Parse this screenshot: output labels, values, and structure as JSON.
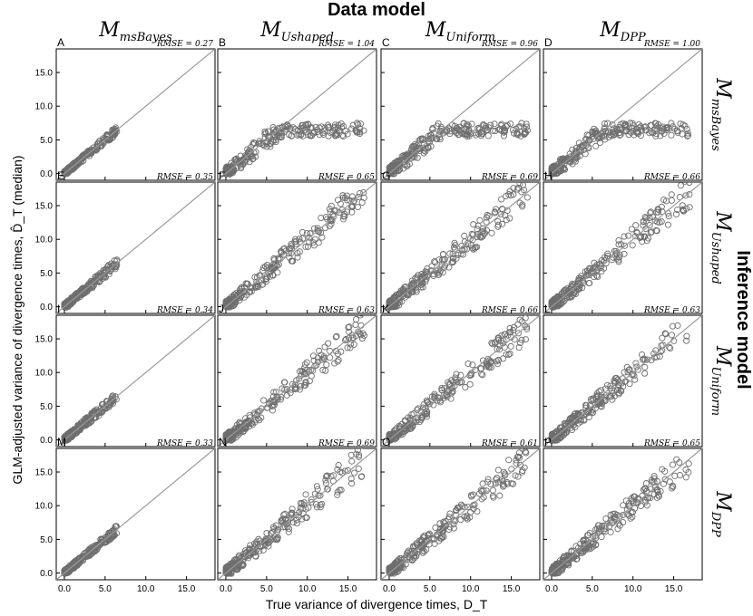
{
  "figure": {
    "top_title": "Data model",
    "right_title": "Inference model",
    "xlabel": "True variance of divergence times, D_T",
    "ylabel": "GLM-adjusted variance of divergence times, D̂_T (median)",
    "column_models": [
      {
        "main": "M",
        "sub": "msBayes"
      },
      {
        "main": "M",
        "sub": "Ushaped"
      },
      {
        "main": "M",
        "sub": "Uniform"
      },
      {
        "main": "M",
        "sub": "DPP"
      }
    ],
    "row_models": [
      {
        "main": "M",
        "sub": "msBayes"
      },
      {
        "main": "M",
        "sub": "Ushaped"
      },
      {
        "main": "M",
        "sub": "Uniform"
      },
      {
        "main": "M",
        "sub": "DPP"
      }
    ]
  },
  "chart_data": {
    "type": "scatter",
    "layout": "4x4 grid of panels",
    "xlim": [
      -1,
      18.5
    ],
    "ylim": [
      -1,
      18.5
    ],
    "x_ticks": [
      0.0,
      5.0,
      10.0,
      15.0
    ],
    "x_tick_labels": [
      "0.0",
      "5.0",
      "10.0",
      "15.0"
    ],
    "y_ticks": [
      0.0,
      5.0,
      10.0,
      15.0
    ],
    "y_tick_labels": [
      "0.0",
      "5.0",
      "10.0",
      "15.0"
    ],
    "reference_line": "y = x",
    "grid": false,
    "marker": "open circle",
    "point_color": "#6e6e6e",
    "line_color": "#9a9a9a",
    "panels": [
      {
        "letter": "A",
        "rmse": "RMSE = 0.27",
        "xmax": 6.5,
        "spread": 0.35,
        "cap": 7
      },
      {
        "letter": "B",
        "rmse": "RMSE = 1.04",
        "xmax": 17,
        "spread": 0.9,
        "cap": 7.5
      },
      {
        "letter": "C",
        "rmse": "RMSE = 0.96",
        "xmax": 17,
        "spread": 0.9,
        "cap": 7.5
      },
      {
        "letter": "D",
        "rmse": "RMSE = 1.00",
        "xmax": 17,
        "spread": 0.9,
        "cap": 7.5
      },
      {
        "letter": "E",
        "rmse": "RMSE = 0.35",
        "xmax": 6.5,
        "spread": 0.45,
        "cap": 7
      },
      {
        "letter": "F",
        "rmse": "RMSE = 0.65",
        "xmax": 17,
        "spread": 0.8,
        "cap": 17
      },
      {
        "letter": "G",
        "rmse": "RMSE = 0.69",
        "xmax": 17,
        "spread": 0.85,
        "cap": 17
      },
      {
        "letter": "H",
        "rmse": "RMSE = 0.66",
        "xmax": 17,
        "spread": 0.8,
        "cap": 17
      },
      {
        "letter": "I",
        "rmse": "RMSE = 0.34",
        "xmax": 6.5,
        "spread": 0.45,
        "cap": 7
      },
      {
        "letter": "J",
        "rmse": "RMSE = 0.63",
        "xmax": 17,
        "spread": 0.8,
        "cap": 17
      },
      {
        "letter": "K",
        "rmse": "RMSE = 0.66",
        "xmax": 17,
        "spread": 0.8,
        "cap": 17
      },
      {
        "letter": "L",
        "rmse": "RMSE = 0.63",
        "xmax": 17,
        "spread": 0.8,
        "cap": 17
      },
      {
        "letter": "M",
        "rmse": "RMSE = 0.33",
        "xmax": 6.5,
        "spread": 0.4,
        "cap": 7
      },
      {
        "letter": "N",
        "rmse": "RMSE = 0.69",
        "xmax": 17,
        "spread": 0.85,
        "cap": 17
      },
      {
        "letter": "O",
        "rmse": "RMSE = 0.61",
        "xmax": 17,
        "spread": 0.8,
        "cap": 17
      },
      {
        "letter": "P",
        "rmse": "RMSE = 0.65",
        "xmax": 17,
        "spread": 0.8,
        "cap": 17
      }
    ]
  }
}
